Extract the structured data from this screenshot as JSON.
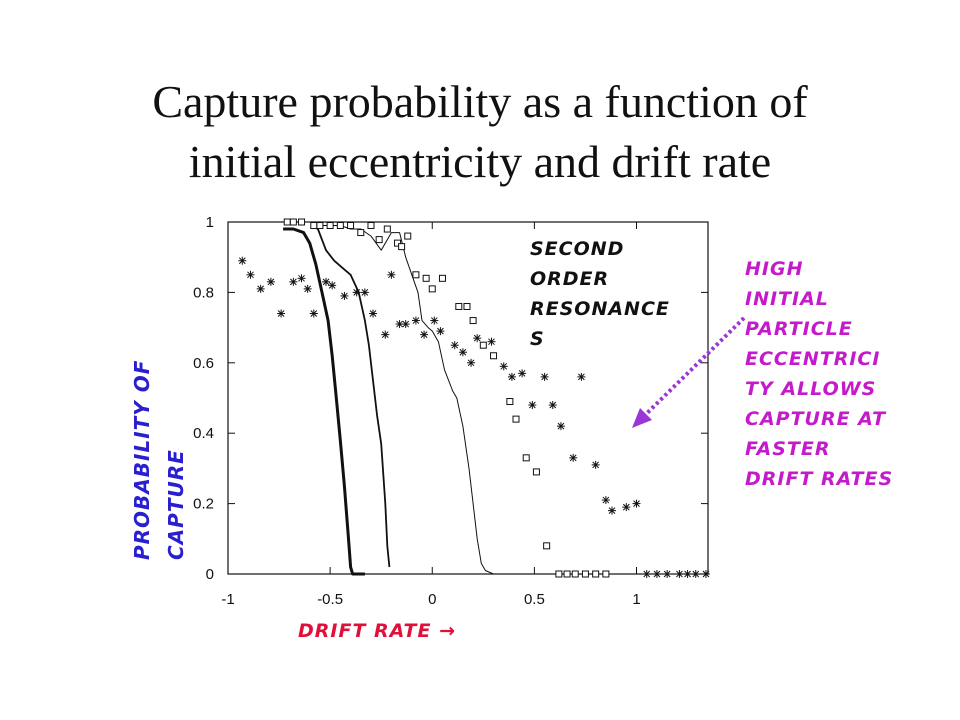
{
  "slide": {
    "title_line1": "Capture probability as a function of",
    "title_line2": "initial eccentricity and drift rate"
  },
  "annotations": {
    "second_order_line1": "Second",
    "second_order_line2": "order",
    "second_order_line3": "resonance",
    "second_order_line4": "s",
    "high_ecc_lines": [
      "High",
      "initial",
      "particle",
      "eccentrici",
      "ty allows",
      "capture at",
      "faster",
      "drift rates"
    ]
  },
  "colors": {
    "ylabel": "#2a1fd0",
    "xlabel": "#e0103a",
    "annotation_pink": "#c41acb",
    "arrow": "#9b35d6"
  },
  "chart_data": {
    "type": "scatter",
    "xlabel": "Drift rate",
    "xlabel_arrow": "→",
    "ylabel_line1": "Probability of",
    "ylabel_line2": "capture",
    "xlim": [
      -1.0,
      1.35
    ],
    "ylim": [
      0,
      1.0
    ],
    "xticks": [
      -1,
      -0.5,
      0,
      0.5,
      1
    ],
    "xtick_labels": [
      "-1",
      "-0.5",
      "0",
      "0.5",
      "1"
    ],
    "yticks": [
      0,
      0.2,
      0.4,
      0.6,
      0.8,
      1
    ],
    "ytick_labels": [
      "0",
      "0.2",
      "0.4",
      "0.6",
      "0.8",
      "1"
    ],
    "series": [
      {
        "kind": "line-bold",
        "x": [
          -0.73,
          -0.68,
          -0.63,
          -0.6,
          -0.57,
          -0.54,
          -0.51,
          -0.49,
          -0.47,
          -0.45,
          -0.43,
          -0.41,
          -0.4,
          -0.39,
          -0.33
        ],
        "y": [
          0.98,
          0.98,
          0.97,
          0.94,
          0.88,
          0.8,
          0.72,
          0.62,
          0.5,
          0.38,
          0.25,
          0.1,
          0.02,
          0.0,
          0.0
        ]
      },
      {
        "kind": "line",
        "x": [
          -0.59,
          -0.56,
          -0.52,
          -0.48,
          -0.44,
          -0.4,
          -0.36,
          -0.33,
          -0.31,
          -0.29,
          -0.27,
          -0.25,
          -0.23,
          -0.22,
          -0.21
        ],
        "y": [
          0.99,
          0.98,
          0.92,
          0.89,
          0.87,
          0.85,
          0.8,
          0.72,
          0.65,
          0.55,
          0.45,
          0.37,
          0.2,
          0.08,
          0.02
        ]
      },
      {
        "kind": "line-thin",
        "x": [
          -0.55,
          -0.45,
          -0.4,
          -0.35,
          -0.3,
          -0.25,
          -0.2,
          -0.16,
          -0.13,
          -0.1,
          -0.07,
          -0.05,
          -0.02,
          0.0,
          0.03,
          0.06,
          0.1,
          0.12,
          0.15,
          0.18,
          0.2,
          0.22,
          0.24,
          0.26,
          0.3,
          0.45,
          0.5,
          0.55
        ],
        "y": [
          0.99,
          0.99,
          0.98,
          0.98,
          0.96,
          0.92,
          0.97,
          0.97,
          0.9,
          0.85,
          0.8,
          0.72,
          0.7,
          0.69,
          0.66,
          0.58,
          0.52,
          0.5,
          0.42,
          0.3,
          0.2,
          0.1,
          0.03,
          0.01,
          0.0,
          0.0,
          0.0,
          0.0
        ]
      },
      {
        "kind": "squares",
        "x": [
          -0.71,
          -0.68,
          -0.64,
          -0.58,
          -0.55,
          -0.5,
          -0.45,
          -0.4,
          -0.35,
          -0.3,
          -0.26,
          -0.22,
          -0.17,
          -0.15,
          -0.12,
          -0.08,
          -0.03,
          0.0,
          0.05,
          0.13,
          0.17,
          0.2,
          0.25,
          0.3,
          0.38,
          0.41,
          0.46,
          0.51,
          0.56,
          0.62,
          0.66,
          0.7,
          0.75,
          0.8,
          0.85
        ],
        "y": [
          1.0,
          1.0,
          1.0,
          0.99,
          0.99,
          0.99,
          0.99,
          0.99,
          0.97,
          0.99,
          0.95,
          0.98,
          0.94,
          0.93,
          0.96,
          0.85,
          0.84,
          0.81,
          0.84,
          0.76,
          0.76,
          0.72,
          0.65,
          0.62,
          0.49,
          0.44,
          0.33,
          0.29,
          0.08,
          0.0,
          0.0,
          0.0,
          0.0,
          0.0,
          0.0
        ]
      },
      {
        "kind": "stars",
        "x": [
          -0.93,
          -0.89,
          -0.84,
          -0.79,
          -0.74,
          -0.68,
          -0.64,
          -0.61,
          -0.58,
          -0.52,
          -0.49,
          -0.43,
          -0.37,
          -0.33,
          -0.29,
          -0.23,
          -0.2,
          -0.16,
          -0.13,
          -0.08,
          -0.04,
          0.01,
          0.04,
          0.11,
          0.15,
          0.19,
          0.22,
          0.29,
          0.35,
          0.39,
          0.44,
          0.49,
          0.55,
          0.59,
          0.63,
          0.69,
          0.73,
          0.8,
          0.85,
          0.88,
          0.95,
          1.0,
          1.05,
          1.1,
          1.15,
          1.21,
          1.25,
          1.29,
          1.34
        ],
        "y": [
          0.89,
          0.85,
          0.81,
          0.83,
          0.74,
          0.83,
          0.84,
          0.81,
          0.74,
          0.83,
          0.82,
          0.79,
          0.8,
          0.8,
          0.74,
          0.68,
          0.85,
          0.71,
          0.71,
          0.72,
          0.68,
          0.72,
          0.69,
          0.65,
          0.63,
          0.6,
          0.67,
          0.66,
          0.59,
          0.56,
          0.57,
          0.48,
          0.56,
          0.48,
          0.42,
          0.33,
          0.56,
          0.31,
          0.21,
          0.18,
          0.19,
          0.2,
          0.0,
          0.0,
          0.0,
          0.0,
          0.0,
          0.0,
          0.0
        ]
      }
    ]
  }
}
